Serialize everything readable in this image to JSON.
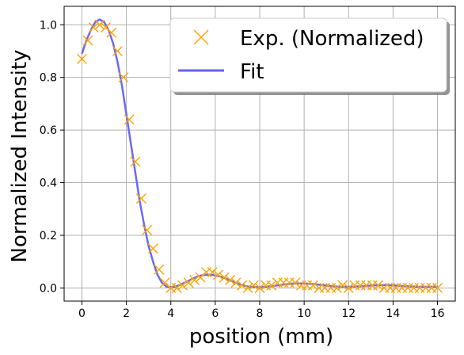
{
  "chart_data": {
    "type": "scatter",
    "title": "",
    "xlabel": "position (mm)",
    "ylabel": "Normalized Intensity",
    "xlim": [
      -0.8,
      16.8
    ],
    "ylim": [
      -0.05,
      1.07
    ],
    "xticks": [
      0,
      2,
      4,
      6,
      8,
      10,
      12,
      14,
      16
    ],
    "yticks": [
      0.0,
      0.2,
      0.4,
      0.6,
      0.8,
      1.0
    ],
    "xtick_labels": [
      "0",
      "2",
      "4",
      "6",
      "8",
      "10",
      "12",
      "14",
      "16"
    ],
    "ytick_labels": [
      "0.0",
      "0.2",
      "0.4",
      "0.6",
      "0.8",
      "1.0"
    ],
    "grid": true,
    "legend_position": "top-right",
    "series": [
      {
        "name": "Exp. (Normalized)",
        "kind": "scatter",
        "marker": "x",
        "color": "#FFA500",
        "x": [
          0.0,
          0.27,
          0.53,
          0.8,
          1.07,
          1.33,
          1.6,
          1.87,
          2.13,
          2.4,
          2.67,
          2.93,
          3.2,
          3.47,
          3.73,
          4.0,
          4.27,
          4.53,
          4.8,
          5.07,
          5.33,
          5.6,
          5.87,
          6.13,
          6.4,
          6.67,
          6.93,
          7.2,
          7.47,
          7.73,
          8.0,
          8.27,
          8.53,
          8.8,
          9.07,
          9.33,
          9.6,
          9.87,
          10.13,
          10.4,
          10.67,
          10.93,
          11.2,
          11.47,
          11.73,
          12.0,
          12.27,
          12.53,
          12.8,
          13.07,
          13.33,
          13.6,
          13.87,
          14.13,
          14.4,
          14.67,
          14.93,
          15.2,
          15.47,
          15.73,
          16.0
        ],
        "y": [
          0.87,
          0.94,
          0.99,
          1.0,
          0.99,
          0.97,
          0.9,
          0.8,
          0.64,
          0.48,
          0.34,
          0.22,
          0.15,
          0.07,
          0.02,
          0.0,
          0.0,
          0.01,
          0.02,
          0.03,
          0.04,
          0.06,
          0.06,
          0.05,
          0.04,
          0.03,
          0.02,
          0.01,
          0.0,
          0.01,
          0.0,
          0.01,
          0.01,
          0.02,
          0.02,
          0.02,
          0.02,
          0.01,
          0.01,
          0.01,
          0.0,
          0.0,
          0.0,
          0.0,
          0.01,
          0.0,
          0.01,
          0.01,
          0.01,
          0.01,
          0.01,
          0.0,
          0.0,
          0.0,
          0.0,
          0.0,
          0.0,
          0.0,
          0.0,
          0.0,
          0.0
        ]
      },
      {
        "name": "Fit",
        "kind": "line",
        "color": "#6262F5",
        "x": [
          0.0,
          0.2,
          0.4,
          0.6,
          0.8,
          1.0,
          1.2,
          1.4,
          1.6,
          1.8,
          2.0,
          2.2,
          2.4,
          2.6,
          2.8,
          3.0,
          3.2,
          3.4,
          3.6,
          3.8,
          4.0,
          4.2,
          4.4,
          4.6,
          4.8,
          5.0,
          5.2,
          5.4,
          5.6,
          5.8,
          6.0,
          6.2,
          6.4,
          6.6,
          6.8,
          7.0,
          7.2,
          7.4,
          7.6,
          7.8,
          8.0,
          8.5,
          9.0,
          9.5,
          10.0,
          10.5,
          11.0,
          11.5,
          12.0,
          12.5,
          13.0,
          13.5,
          14.0,
          14.5,
          15.0,
          15.5,
          16.0
        ],
        "y": [
          0.89,
          0.94,
          0.98,
          1.01,
          1.02,
          1.01,
          0.98,
          0.93,
          0.86,
          0.77,
          0.66,
          0.55,
          0.44,
          0.33,
          0.24,
          0.16,
          0.1,
          0.05,
          0.02,
          0.005,
          0.003,
          0.005,
          0.011,
          0.019,
          0.027,
          0.036,
          0.043,
          0.048,
          0.05,
          0.05,
          0.048,
          0.044,
          0.038,
          0.031,
          0.024,
          0.017,
          0.011,
          0.007,
          0.004,
          0.003,
          0.003,
          0.006,
          0.012,
          0.017,
          0.017,
          0.014,
          0.009,
          0.005,
          0.004,
          0.006,
          0.009,
          0.011,
          0.01,
          0.007,
          0.005,
          0.004,
          0.005
        ]
      }
    ]
  }
}
